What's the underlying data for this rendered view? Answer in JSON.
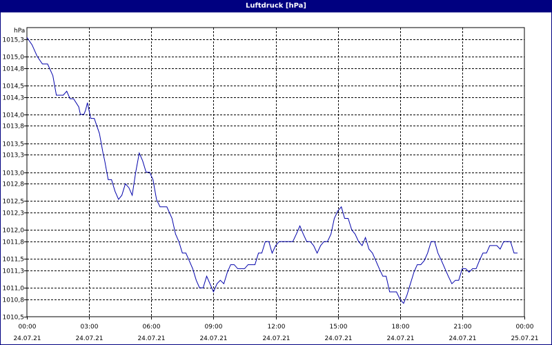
{
  "window": {
    "title": "Luftdruck [hPa]"
  },
  "chart_data": {
    "type": "line",
    "title": "Luftdruck [hPa]",
    "ylabel": "hPa",
    "xlabel": "",
    "ylim": [
      1010.5,
      1015.5
    ],
    "xlim": [
      0,
      24
    ],
    "grid": true,
    "y_ticks": [
      1010.5,
      1010.8,
      1011.0,
      1011.3,
      1011.5,
      1011.8,
      1012.0,
      1012.3,
      1012.5,
      1012.8,
      1013.0,
      1013.3,
      1013.5,
      1013.8,
      1014.0,
      1014.3,
      1014.5,
      1014.8,
      1015.0,
      1015.3
    ],
    "y_tick_labels": [
      "1010,5",
      "1010,8",
      "1011,0",
      "1011,3",
      "1011,5",
      "1011,8",
      "1012,0",
      "1012,3",
      "1012,5",
      "1012,8",
      "1013,0",
      "1013,3",
      "1013,5",
      "1013,8",
      "1014,0",
      "1014,3",
      "1014,5",
      "1014,8",
      "1015,0",
      "1015,3"
    ],
    "x_ticks": [
      {
        "x": 0,
        "time": "00:00",
        "date": "24.07.21"
      },
      {
        "x": 3,
        "time": "03:00",
        "date": "24.07.21"
      },
      {
        "x": 6,
        "time": "06:00",
        "date": "24.07.21"
      },
      {
        "x": 9,
        "time": "09:00",
        "date": "24.07.21"
      },
      {
        "x": 12,
        "time": "12:00",
        "date": "24.07.21"
      },
      {
        "x": 15,
        "time": "15:00",
        "date": "24.07.21"
      },
      {
        "x": 18,
        "time": "18:00",
        "date": "24.07.21"
      },
      {
        "x": 21,
        "time": "21:00",
        "date": "24.07.21"
      },
      {
        "x": 24,
        "time": "00:00",
        "date": "25.07.21"
      }
    ],
    "series": [
      {
        "color": "#0000aa",
        "points": [
          [
            0.0,
            1015.33
          ],
          [
            0.25,
            1015.2
          ],
          [
            0.5,
            1015.0
          ],
          [
            0.75,
            1014.87
          ],
          [
            1.0,
            1014.87
          ],
          [
            1.25,
            1014.67
          ],
          [
            1.42,
            1014.33
          ],
          [
            1.75,
            1014.33
          ],
          [
            1.92,
            1014.4
          ],
          [
            2.08,
            1014.27
          ],
          [
            2.25,
            1014.27
          ],
          [
            2.5,
            1014.13
          ],
          [
            2.58,
            1014.0
          ],
          [
            2.75,
            1014.0
          ],
          [
            2.83,
            1014.07
          ],
          [
            2.92,
            1014.2
          ],
          [
            3.08,
            1013.93
          ],
          [
            3.25,
            1013.93
          ],
          [
            3.5,
            1013.67
          ],
          [
            3.67,
            1013.33
          ],
          [
            3.75,
            1013.2
          ],
          [
            3.92,
            1012.87
          ],
          [
            4.08,
            1012.87
          ],
          [
            4.25,
            1012.67
          ],
          [
            4.42,
            1012.53
          ],
          [
            4.58,
            1012.6
          ],
          [
            4.75,
            1012.8
          ],
          [
            4.92,
            1012.73
          ],
          [
            5.08,
            1012.6
          ],
          [
            5.25,
            1013.0
          ],
          [
            5.42,
            1013.33
          ],
          [
            5.58,
            1013.2
          ],
          [
            5.75,
            1013.0
          ],
          [
            5.92,
            1013.0
          ],
          [
            6.08,
            1012.87
          ],
          [
            6.25,
            1012.53
          ],
          [
            6.42,
            1012.4
          ],
          [
            6.58,
            1012.4
          ],
          [
            6.75,
            1012.4
          ],
          [
            7.0,
            1012.2
          ],
          [
            7.17,
            1011.93
          ],
          [
            7.33,
            1011.8
          ],
          [
            7.5,
            1011.6
          ],
          [
            7.67,
            1011.6
          ],
          [
            7.83,
            1011.47
          ],
          [
            8.0,
            1011.33
          ],
          [
            8.17,
            1011.13
          ],
          [
            8.33,
            1011.0
          ],
          [
            8.5,
            1011.0
          ],
          [
            8.67,
            1011.2
          ],
          [
            8.83,
            1011.07
          ],
          [
            9.0,
            1010.93
          ],
          [
            9.17,
            1011.07
          ],
          [
            9.33,
            1011.13
          ],
          [
            9.5,
            1011.07
          ],
          [
            9.67,
            1011.27
          ],
          [
            9.83,
            1011.4
          ],
          [
            10.0,
            1011.4
          ],
          [
            10.17,
            1011.33
          ],
          [
            10.33,
            1011.33
          ],
          [
            10.5,
            1011.33
          ],
          [
            10.67,
            1011.4
          ],
          [
            10.83,
            1011.4
          ],
          [
            11.0,
            1011.4
          ],
          [
            11.17,
            1011.6
          ],
          [
            11.33,
            1011.6
          ],
          [
            11.5,
            1011.8
          ],
          [
            11.67,
            1011.8
          ],
          [
            11.83,
            1011.6
          ],
          [
            12.0,
            1011.73
          ],
          [
            12.17,
            1011.8
          ],
          [
            12.33,
            1011.8
          ],
          [
            12.5,
            1011.8
          ],
          [
            12.67,
            1011.8
          ],
          [
            12.83,
            1011.8
          ],
          [
            13.0,
            1011.93
          ],
          [
            13.17,
            1012.07
          ],
          [
            13.33,
            1011.93
          ],
          [
            13.5,
            1011.8
          ],
          [
            13.67,
            1011.8
          ],
          [
            13.83,
            1011.73
          ],
          [
            14.0,
            1011.6
          ],
          [
            14.17,
            1011.73
          ],
          [
            14.33,
            1011.8
          ],
          [
            14.5,
            1011.8
          ],
          [
            14.67,
            1011.93
          ],
          [
            14.83,
            1012.2
          ],
          [
            15.0,
            1012.33
          ],
          [
            15.17,
            1012.4
          ],
          [
            15.33,
            1012.2
          ],
          [
            15.5,
            1012.2
          ],
          [
            15.67,
            1012.0
          ],
          [
            15.83,
            1011.93
          ],
          [
            16.0,
            1011.8
          ],
          [
            16.17,
            1011.73
          ],
          [
            16.33,
            1011.87
          ],
          [
            16.5,
            1011.67
          ],
          [
            16.67,
            1011.6
          ],
          [
            16.83,
            1011.47
          ],
          [
            17.0,
            1011.33
          ],
          [
            17.17,
            1011.2
          ],
          [
            17.33,
            1011.2
          ],
          [
            17.5,
            1010.93
          ],
          [
            17.67,
            1010.93
          ],
          [
            17.83,
            1010.93
          ],
          [
            18.0,
            1010.8
          ],
          [
            18.17,
            1010.73
          ],
          [
            18.33,
            1010.87
          ],
          [
            18.5,
            1011.07
          ],
          [
            18.67,
            1011.27
          ],
          [
            18.83,
            1011.4
          ],
          [
            19.0,
            1011.4
          ],
          [
            19.17,
            1011.47
          ],
          [
            19.33,
            1011.6
          ],
          [
            19.5,
            1011.8
          ],
          [
            19.67,
            1011.8
          ],
          [
            19.83,
            1011.6
          ],
          [
            20.0,
            1011.47
          ],
          [
            20.17,
            1011.33
          ],
          [
            20.33,
            1011.2
          ],
          [
            20.5,
            1011.07
          ],
          [
            20.67,
            1011.13
          ],
          [
            20.83,
            1011.13
          ],
          [
            21.0,
            1011.33
          ],
          [
            21.17,
            1011.33
          ],
          [
            21.33,
            1011.27
          ],
          [
            21.5,
            1011.33
          ],
          [
            21.67,
            1011.33
          ],
          [
            21.83,
            1011.47
          ],
          [
            22.0,
            1011.6
          ],
          [
            22.17,
            1011.6
          ],
          [
            22.33,
            1011.73
          ],
          [
            22.5,
            1011.73
          ],
          [
            22.67,
            1011.73
          ],
          [
            22.83,
            1011.67
          ],
          [
            23.0,
            1011.8
          ],
          [
            23.17,
            1011.8
          ],
          [
            23.33,
            1011.8
          ],
          [
            23.5,
            1011.6
          ],
          [
            23.67,
            1011.6
          ]
        ]
      }
    ]
  }
}
